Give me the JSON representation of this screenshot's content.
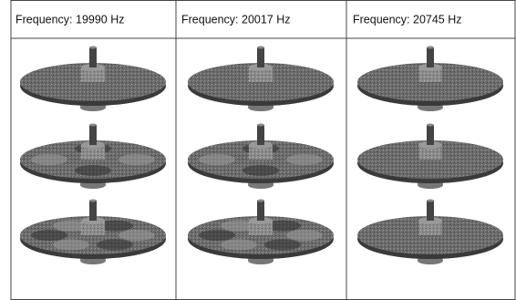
{
  "table": {
    "headers": [
      "Frequency: 19990 Hz",
      "Frequency: 20017 Hz",
      "Frequency: 20745 Hz"
    ]
  }
}
